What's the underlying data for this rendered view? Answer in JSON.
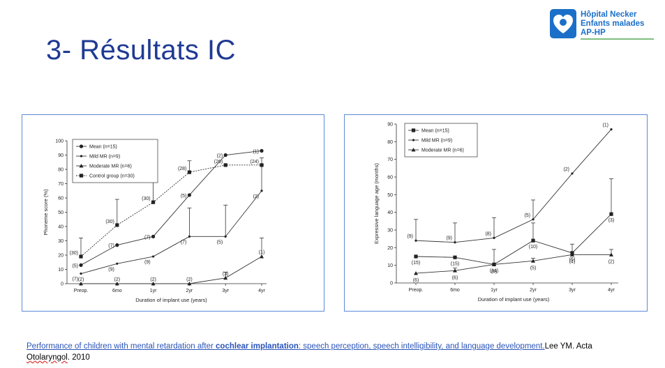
{
  "slide": {
    "title": "3- Résultats IC",
    "logo_lines": [
      "Hôpital Necker",
      "Enfants malades",
      "AP-HP"
    ]
  },
  "reference": {
    "link_part1": "Performance of children with mental retardation after ",
    "link_bold": "cochlear implantation",
    "link_part2": ": speech perception, speech intelligibility, and language development.",
    "author": "Lee",
    "rest": " YM. Acta ",
    "journal": "Otolaryngol",
    "year": ". 2010"
  },
  "colors": {
    "title": "#1f3a93",
    "frame": "#5b8bd6",
    "logo": "#1b6fc8",
    "link": "#2a54b8"
  },
  "chart_data": [
    {
      "type": "line",
      "categories": [
        "Preop.",
        "6mo",
        "1yr",
        "2yr",
        "3yr",
        "4yr"
      ],
      "xlabel": "Duration of implant use (years)",
      "ylabel": "Phoneme score (%)",
      "ylim": [
        0,
        100
      ],
      "yticks": [
        0,
        10,
        20,
        30,
        40,
        50,
        60,
        70,
        80,
        90,
        100
      ],
      "legend_position": "top-left",
      "series": [
        {
          "name": "Mean (n=15)",
          "marker": "circle",
          "dash": false,
          "values": [
            13,
            27,
            33,
            62,
            90,
            93
          ],
          "errors": [
            null,
            null,
            null,
            null,
            null,
            null
          ],
          "labels": [
            "(5)",
            "(7)",
            "(7)",
            "(5)",
            "(2)",
            "(1)"
          ]
        },
        {
          "name": "Mild MR (n=9)",
          "marker": "dot",
          "dash": false,
          "values": [
            7,
            14,
            19,
            33,
            33,
            65
          ],
          "errors": [
            null,
            null,
            null,
            20,
            22,
            18
          ],
          "labels": [
            "(7)",
            "(9)",
            "(9)",
            "(7)",
            "(5)",
            "(2)"
          ]
        },
        {
          "name": "Moderate MR (n=6)",
          "marker": "triangle",
          "dash": false,
          "values": [
            0,
            0,
            0,
            0,
            4,
            19
          ],
          "errors": [
            null,
            null,
            null,
            null,
            4,
            13
          ],
          "labels": [
            "(2)",
            "(2)",
            "(2)",
            "(2)",
            "(3)",
            "(1)"
          ]
        },
        {
          "name": "Control group (n=30)",
          "marker": "square",
          "dash": true,
          "values": [
            19,
            41,
            57,
            78,
            83,
            83
          ],
          "errors": [
            13,
            18,
            14,
            8,
            null,
            5
          ],
          "labels": [
            "(30)",
            "(30)",
            "(30)",
            "(28)",
            "(26)",
            "(24)"
          ]
        }
      ]
    },
    {
      "type": "line",
      "categories": [
        "Preop.",
        "6mo",
        "1yr",
        "2yr",
        "3yr",
        "4yr"
      ],
      "xlabel": "Duration of implant use (years)",
      "ylabel": "Expressive language age (months)",
      "ylim": [
        0,
        90
      ],
      "yticks": [
        0,
        10,
        20,
        30,
        40,
        50,
        60,
        70,
        80,
        90
      ],
      "legend_position": "top-left",
      "series": [
        {
          "name": "Mean (n=15)",
          "marker": "square",
          "dash": false,
          "values": [
            15,
            14.5,
            10.5,
            24,
            17,
            39
          ],
          "errors": [
            null,
            null,
            null,
            10,
            5,
            20
          ],
          "labels": [
            "(15)",
            "(15)",
            "(14)",
            "(10)",
            "(6)",
            "(3)"
          ]
        },
        {
          "name": "Mild MR (n=9)",
          "marker": "dot",
          "dash": false,
          "values": [
            24,
            23,
            25.5,
            36,
            62,
            87
          ],
          "errors": [
            12,
            11,
            11.5,
            11,
            null,
            null
          ],
          "labels": [
            "(9)",
            "(9)",
            "(8)",
            "(5)",
            "(2)",
            "(1)"
          ]
        },
        {
          "name": "Moderate MR (n=6)",
          "marker": "triangle",
          "dash": false,
          "values": [
            5.5,
            7,
            10.5,
            12.5,
            16,
            16
          ],
          "errors": [
            null,
            1.5,
            8.5,
            1.5,
            null,
            3
          ],
          "labels": [
            "(6)",
            "(6)",
            "(6)",
            "(5)",
            "(4)",
            "(2)"
          ]
        }
      ]
    }
  ]
}
